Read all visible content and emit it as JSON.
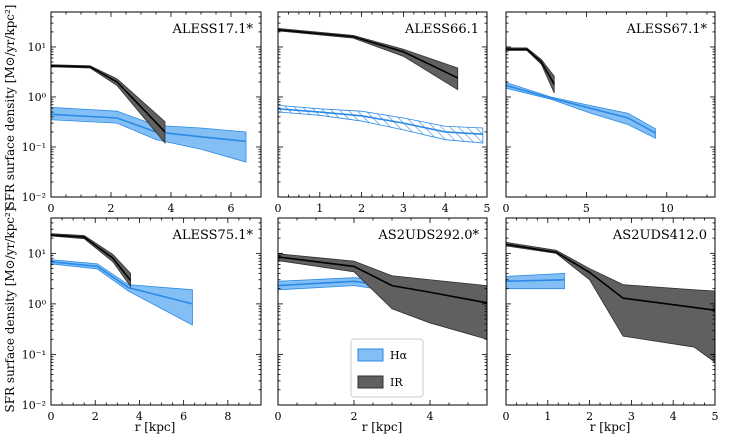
{
  "colors": {
    "halpha_fill": "#5aaaf2",
    "halpha_line": "#2b8ae6",
    "ir_fill": "#606060",
    "ir_line": "#000000",
    "hatch": "#2b8ae6"
  },
  "legend": {
    "halpha": "Hα",
    "ir": "IR"
  },
  "axis": {
    "ylabel": "SFR surface density [M⊙/yr/kpc²]",
    "xlabel": "r [kpc]"
  },
  "chart_data": [
    {
      "type": "area",
      "title": "ALESS17.1*",
      "xlim": [
        0,
        7
      ],
      "ylim": [
        0.01,
        50
      ],
      "yscale": "log",
      "xticks": [
        0,
        2,
        4,
        6
      ],
      "yticks": [
        0.01,
        0.1,
        1,
        10
      ],
      "ytick_labels": [
        "10⁻²",
        "10⁻¹",
        "10⁰",
        "10¹"
      ],
      "series": [
        {
          "name": "Hα",
          "x": [
            0,
            2.2,
            3.5,
            5.0,
            6.5
          ],
          "y": [
            0.45,
            0.38,
            0.2,
            0.16,
            0.13
          ],
          "lo": [
            0.35,
            0.3,
            0.14,
            0.09,
            0.05
          ],
          "hi": [
            0.62,
            0.52,
            0.27,
            0.24,
            0.2
          ],
          "hatched": false
        },
        {
          "name": "IR",
          "x": [
            0,
            1.3,
            2.2,
            3.8
          ],
          "y": [
            4.2,
            4.0,
            2.0,
            0.2
          ],
          "lo": [
            4.0,
            3.8,
            1.7,
            0.12
          ],
          "hi": [
            4.4,
            4.2,
            2.3,
            0.32
          ],
          "hatched": false
        }
      ]
    },
    {
      "type": "area",
      "title": "ALESS66.1",
      "xlim": [
        0,
        5
      ],
      "ylim": [
        0.01,
        50
      ],
      "yscale": "log",
      "xticks": [
        0,
        1,
        2,
        3,
        4,
        5
      ],
      "yticks": [
        0.01,
        0.1,
        1,
        10
      ],
      "series": [
        {
          "name": "Hα",
          "x": [
            0,
            1,
            2,
            3,
            4,
            4.9
          ],
          "y": [
            0.58,
            0.5,
            0.42,
            0.3,
            0.2,
            0.18
          ],
          "lo": [
            0.5,
            0.43,
            0.33,
            0.22,
            0.14,
            0.12
          ],
          "hi": [
            0.68,
            0.58,
            0.52,
            0.38,
            0.26,
            0.24
          ],
          "hatched": true
        },
        {
          "name": "IR",
          "x": [
            0,
            1.8,
            3,
            4.3
          ],
          "y": [
            22,
            16,
            8,
            2.4
          ],
          "lo": [
            21,
            15,
            6.5,
            1.4
          ],
          "hi": [
            23.5,
            17,
            9,
            3.8
          ],
          "hatched": false
        }
      ]
    },
    {
      "type": "area",
      "title": "ALESS67.1*",
      "xlim": [
        0,
        13
      ],
      "ylim": [
        0.01,
        50
      ],
      "yscale": "log",
      "xticks": [
        0,
        5,
        10
      ],
      "yticks": [
        0.01,
        0.1,
        1,
        10
      ],
      "series": [
        {
          "name": "Hα",
          "x": [
            0,
            2.8,
            5.2,
            7.6,
            9.3
          ],
          "y": [
            1.7,
            0.95,
            0.6,
            0.38,
            0.19
          ],
          "lo": [
            1.5,
            0.9,
            0.48,
            0.28,
            0.15
          ],
          "hi": [
            1.95,
            1.0,
            0.68,
            0.47,
            0.23
          ],
          "hatched": false
        },
        {
          "name": "IR",
          "x": [
            0,
            1.3,
            2.2,
            3.0
          ],
          "y": [
            9.0,
            9.0,
            5.0,
            1.8
          ],
          "lo": [
            8.5,
            8.5,
            4.5,
            1.2
          ],
          "hi": [
            9.6,
            9.6,
            5.6,
            2.6
          ],
          "hatched": false
        }
      ]
    },
    {
      "type": "area",
      "title": "ALESS75.1*",
      "xlim": [
        0,
        9.5
      ],
      "ylim": [
        0.01,
        50
      ],
      "yscale": "log",
      "xticks": [
        0,
        2,
        4,
        6,
        8
      ],
      "yticks": [
        0.01,
        0.1,
        1,
        10
      ],
      "ytick_labels": [
        "10⁻²",
        "10⁻¹",
        "10⁰",
        "10¹"
      ],
      "series": [
        {
          "name": "Hα",
          "x": [
            0,
            2.1,
            3.5,
            6.4
          ],
          "y": [
            6.8,
            5.5,
            2.1,
            1.0
          ],
          "lo": [
            6.2,
            4.9,
            1.8,
            0.38
          ],
          "hi": [
            7.5,
            6.2,
            2.4,
            1.9
          ],
          "hatched": false
        },
        {
          "name": "IR",
          "x": [
            0,
            1.5,
            2.8,
            3.6
          ],
          "y": [
            23,
            21,
            8,
            2.9
          ],
          "lo": [
            22,
            19.5,
            6.8,
            2.2
          ],
          "hi": [
            24.5,
            22.5,
            9.5,
            4.0
          ],
          "hatched": false
        }
      ]
    },
    {
      "type": "area",
      "title": "AS2UDS292.0*",
      "xlim": [
        0,
        5.5
      ],
      "ylim": [
        0.01,
        50
      ],
      "yscale": "log",
      "xticks": [
        0,
        2,
        4
      ],
      "yticks": [
        0.01,
        0.1,
        1,
        10
      ],
      "series": [
        {
          "name": "Hα",
          "x": [
            0,
            2.0,
            3.0,
            4.0,
            5.2
          ],
          "y": [
            2.3,
            2.8,
            2.2,
            1.8,
            1.0
          ],
          "lo": [
            1.9,
            2.3,
            1.8,
            1.3,
            0.7
          ],
          "hi": [
            2.8,
            3.3,
            2.8,
            2.4,
            1.5
          ],
          "hatched": false
        },
        {
          "name": "IR",
          "x": [
            0,
            2.0,
            3.0,
            4.0,
            5.5
          ],
          "y": [
            8.5,
            5.5,
            2.3,
            1.7,
            1.05
          ],
          "lo": [
            7.2,
            4.3,
            0.8,
            0.42,
            0.2
          ],
          "hi": [
            9.8,
            7.0,
            3.6,
            3.0,
            2.3
          ],
          "hatched": false
        }
      ]
    },
    {
      "type": "area",
      "title": "AS2UDS412.0",
      "xlim": [
        0,
        5
      ],
      "ylim": [
        0.01,
        50
      ],
      "yscale": "log",
      "xticks": [
        0,
        1,
        2,
        3,
        4,
        5
      ],
      "yticks": [
        0.01,
        0.1,
        1,
        10
      ],
      "series": [
        {
          "name": "Hα",
          "x": [
            0,
            1.4
          ],
          "y": [
            2.8,
            3.0
          ],
          "lo": [
            2.0,
            2.0
          ],
          "hi": [
            3.5,
            4.0
          ],
          "hatched": false
        },
        {
          "name": "IR",
          "x": [
            0,
            1.2,
            2.0,
            2.8,
            4.5,
            5
          ],
          "y": [
            15,
            10.5,
            4.2,
            1.3,
            0.85,
            0.75
          ],
          "lo": [
            14,
            10,
            3.0,
            0.23,
            0.14,
            0.07
          ],
          "hi": [
            16.5,
            11.5,
            5.0,
            2.4,
            1.9,
            1.8
          ],
          "hatched": false
        }
      ]
    }
  ]
}
